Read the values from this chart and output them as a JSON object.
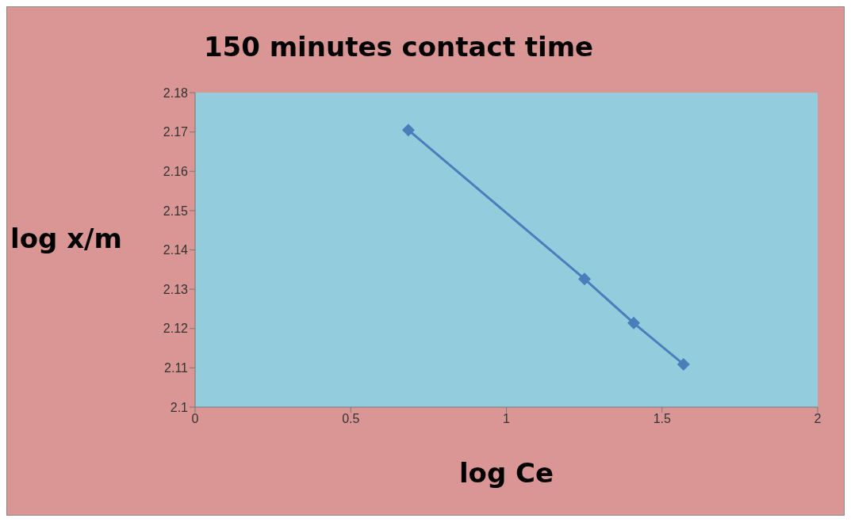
{
  "chart_data": {
    "type": "line",
    "title": "150 minutes contact time",
    "xlabel": "log Ce",
    "ylabel": "log x/m",
    "x": [
      0.685,
      1.251,
      1.409,
      1.569
    ],
    "series": [
      {
        "color": "#4a7ebb",
        "values": [
          2.1705,
          2.1326,
          2.1214,
          2.1109
        ]
      }
    ],
    "xlim": [
      0,
      2
    ],
    "xticks": [
      0,
      0.5,
      1,
      1.5,
      2
    ],
    "ylim": [
      2.1,
      2.18
    ],
    "yticks": [
      2.1,
      2.11,
      2.12,
      2.13,
      2.14,
      2.15,
      2.16,
      2.17,
      2.18
    ],
    "grid": false,
    "marker": "diamond",
    "line_style": "solid"
  }
}
